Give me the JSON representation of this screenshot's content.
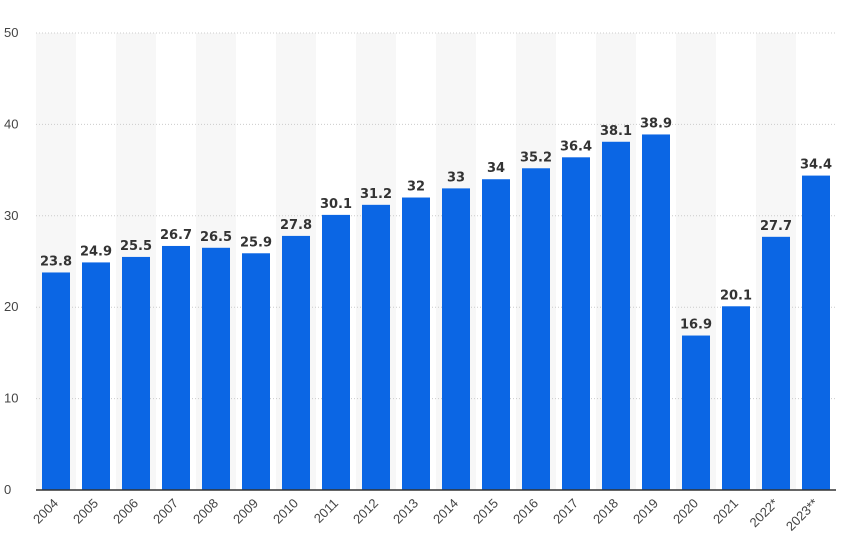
{
  "chart_data": {
    "type": "bar",
    "categories": [
      "2004",
      "2005",
      "2006",
      "2007",
      "2008",
      "2009",
      "2010",
      "2011",
      "2012",
      "2013",
      "2014",
      "2015",
      "2016",
      "2017",
      "2018",
      "2019",
      "2020",
      "2021",
      "2022*",
      "2023**"
    ],
    "values": [
      23.8,
      24.9,
      25.5,
      26.7,
      26.5,
      25.9,
      27.8,
      30.1,
      31.2,
      32,
      33,
      34,
      35.2,
      36.4,
      38.1,
      38.9,
      16.9,
      20.1,
      27.7,
      34.4
    ],
    "value_labels": [
      "23.8",
      "24.9",
      "25.5",
      "26.7",
      "26.5",
      "25.9",
      "27.8",
      "30.1",
      "31.2",
      "32",
      "33",
      "34",
      "35.2",
      "36.4",
      "38.1",
      "38.9",
      "16.9",
      "20.1",
      "27.7",
      "34.4"
    ],
    "y_ticks": [
      0,
      10,
      20,
      30,
      40,
      50
    ],
    "ylim": [
      0,
      50
    ],
    "title": "",
    "xlabel": "",
    "ylabel": "",
    "grid": true,
    "legend": "none",
    "colors": {
      "bar": "#0b66e4",
      "band": "#f7f7f7",
      "grid": "#cccccc",
      "axis": "#333333"
    }
  }
}
